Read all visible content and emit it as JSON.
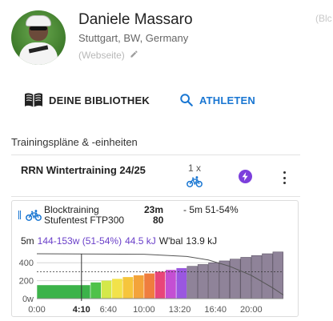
{
  "profile": {
    "name": "Daniele Massaro",
    "location": "Stuttgart, BW, Germany",
    "website_placeholder": "(Webseite)",
    "corner_text": "(Blc"
  },
  "actions": {
    "library_label": "DEINE BIBLIOTHEK",
    "athletes_label": "ATHLETEN"
  },
  "section": {
    "title": "Trainingspläne & -einheiten"
  },
  "plan": {
    "title": "RRN Wintertraining 24/25",
    "count": "1 x"
  },
  "workout": {
    "name": "Blocktraining",
    "subtitle": "Stufentest FTP300",
    "duration": "23m",
    "tss": "80",
    "interval": "- 5m 51-54%",
    "stats": {
      "window": "5m",
      "power": "144-153w (51-54%)",
      "work": "44.5 kJ",
      "wbal_label": "W'bal",
      "wbal_value": "13.9 kJ"
    }
  },
  "chart_data": {
    "type": "bar",
    "y_ticks": [
      "400",
      "200",
      "0w"
    ],
    "x_ticks": [
      "0:00",
      "4:10",
      "6:40",
      "10:00",
      "13:20",
      "16:40",
      "20:00"
    ],
    "x_tick_minutes": [
      0,
      4.1667,
      6.6667,
      10,
      13.3333,
      16.6667,
      20
    ],
    "cursor_minute": 4.1667,
    "ylim": [
      0,
      500
    ],
    "xlim": [
      0,
      23
    ],
    "steps": [
      {
        "start": 0,
        "end": 5,
        "watts": 150,
        "color": "#3cb34a"
      },
      {
        "start": 5,
        "end": 6,
        "watts": 180,
        "color": "#4fc24a"
      },
      {
        "start": 6,
        "end": 7,
        "watts": 200,
        "color": "#d4e84a"
      },
      {
        "start": 7,
        "end": 8,
        "watts": 220,
        "color": "#f2e24a"
      },
      {
        "start": 8,
        "end": 9,
        "watts": 240,
        "color": "#f6c53c"
      },
      {
        "start": 9,
        "end": 10,
        "watts": 260,
        "color": "#f3a33a"
      },
      {
        "start": 10,
        "end": 11,
        "watts": 280,
        "color": "#ef7d3e"
      },
      {
        "start": 11,
        "end": 12,
        "watts": 300,
        "color": "#e8457a"
      },
      {
        "start": 12,
        "end": 13,
        "watts": 320,
        "color": "#c44fd3"
      },
      {
        "start": 13,
        "end": 14,
        "watts": 340,
        "color": "#9a57e0"
      },
      {
        "start": 14,
        "end": 15,
        "watts": 360,
        "color": "#8f8399"
      },
      {
        "start": 15,
        "end": 16,
        "watts": 380,
        "color": "#8f8399"
      },
      {
        "start": 16,
        "end": 17,
        "watts": 400,
        "color": "#8f8399"
      },
      {
        "start": 17,
        "end": 18,
        "watts": 420,
        "color": "#8f8399"
      },
      {
        "start": 18,
        "end": 19,
        "watts": 440,
        "color": "#8f8399"
      },
      {
        "start": 19,
        "end": 20,
        "watts": 460,
        "color": "#8f8399"
      },
      {
        "start": 20,
        "end": 21,
        "watts": 480,
        "color": "#8f8399"
      },
      {
        "start": 21,
        "end": 22,
        "watts": 500,
        "color": "#8f8399"
      },
      {
        "start": 22,
        "end": 23,
        "watts": 520,
        "color": "#8f8399"
      }
    ],
    "ftp_line_watts": 300,
    "wbal_curve": [
      [
        0,
        500
      ],
      [
        10,
        495
      ],
      [
        14,
        470
      ],
      [
        16,
        430
      ],
      [
        18,
        360
      ],
      [
        20,
        260
      ],
      [
        22,
        120
      ],
      [
        23,
        40
      ]
    ]
  }
}
